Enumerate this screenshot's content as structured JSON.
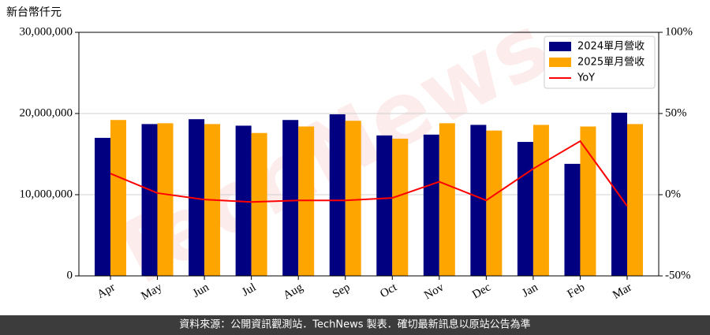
{
  "chart_data": {
    "type": "bar",
    "y_axis_label": "新台幣仟元",
    "watermark": "TechNews",
    "footer": "資料來源：公開資訊觀測站．TechNews 製表．確切最新訊息以原站公告為準",
    "categories": [
      "Apr",
      "May",
      "Jun",
      "Jul",
      "Aug",
      "Sep",
      "Oct",
      "Nov",
      "Dec",
      "Jan",
      "Feb",
      "Mar"
    ],
    "series": [
      {
        "name": "2024單月營收",
        "color": "#000080",
        "type": "bar",
        "values": [
          17000000,
          18700000,
          19300000,
          18500000,
          19200000,
          19900000,
          17300000,
          17400000,
          18600000,
          16500000,
          13800000,
          20100000
        ]
      },
      {
        "name": "2025單月營收",
        "color": "#ffa500",
        "type": "bar",
        "values": [
          19200000,
          18800000,
          18700000,
          17600000,
          18400000,
          19100000,
          16900000,
          18800000,
          17900000,
          18600000,
          18400000,
          18700000
        ]
      },
      {
        "name": "YoY",
        "color": "#ff0000",
        "type": "line",
        "axis": "y2",
        "values": [
          13,
          1,
          -3,
          -4.5,
          -3.5,
          -3.5,
          -2,
          8,
          -3.5,
          16,
          33,
          -7
        ]
      }
    ],
    "ylim": [
      0,
      30000000
    ],
    "yticks": [
      0,
      {
        "value": 10000000,
        "label": "10,000,000"
      },
      {
        "value": 20000000,
        "label": "20,000,000"
      },
      {
        "value": 30000000,
        "label": "30,000,000"
      }
    ],
    "y2lim": [
      -50,
      100
    ],
    "y2ticks": [
      {
        "value": -50,
        "label": "-50%"
      },
      {
        "value": 0,
        "label": "0%"
      },
      {
        "value": 50,
        "label": "50%"
      },
      {
        "value": 100,
        "label": "100%"
      }
    ],
    "grid": true,
    "legend": "upper right"
  }
}
